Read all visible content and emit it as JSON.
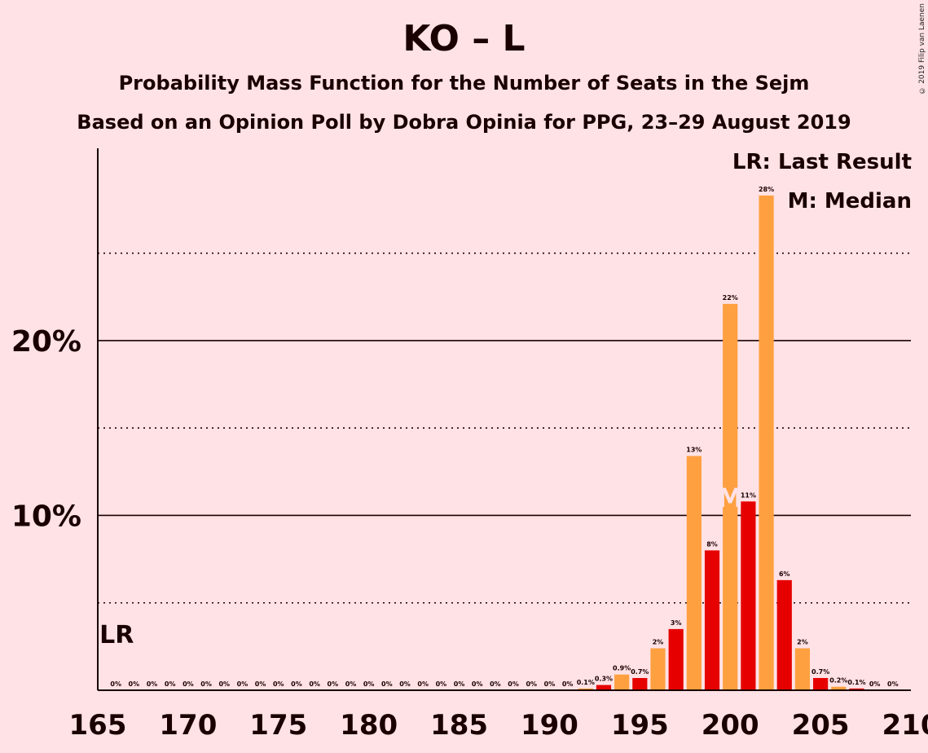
{
  "header": {
    "title": "KO – L",
    "subtitle1": "Probability Mass Function for the Number of Seats in the Sejm",
    "subtitle2": "Based on an Opinion Poll by Dobra Opinia for PPG, 23–29 August 2019",
    "copyright": "© 2019 Filip van Laenen"
  },
  "legend": {
    "last_result": "LR: Last Result",
    "median": "M: Median"
  },
  "colors": {
    "background": "#FFE2E5",
    "bar_orange": "#FFA040",
    "bar_red": "#E60000",
    "text": "#1a0000",
    "median_marker": "#FFE2E5"
  },
  "chart_data": {
    "type": "bar",
    "xlim": [
      165,
      210
    ],
    "ylim": [
      0,
      30
    ],
    "x_ticks": [
      165,
      170,
      175,
      180,
      185,
      190,
      195,
      200,
      205,
      210
    ],
    "x_tick_labels": [
      "165",
      "170",
      "175",
      "180",
      "185",
      "190",
      "195",
      "200",
      "205",
      "210"
    ],
    "y_ticks": [
      10,
      20
    ],
    "y_tick_labels": [
      "10%",
      "20%"
    ],
    "y_dotted_lines": [
      5,
      15,
      25
    ],
    "last_result_seat": 166,
    "last_result_label": "LR",
    "median_seat": 200,
    "median_label": "M",
    "x": [
      166,
      167,
      168,
      169,
      170,
      171,
      172,
      173,
      174,
      175,
      176,
      177,
      178,
      179,
      180,
      181,
      182,
      183,
      184,
      185,
      186,
      187,
      188,
      189,
      190,
      191,
      192,
      193,
      194,
      195,
      196,
      197,
      198,
      199,
      200,
      201,
      202,
      203,
      204,
      205,
      206,
      207,
      208,
      209
    ],
    "values": [
      0,
      0,
      0,
      0,
      0,
      0,
      0,
      0,
      0,
      0,
      0,
      0,
      0,
      0,
      0,
      0,
      0,
      0,
      0,
      0,
      0,
      0,
      0,
      0,
      0,
      0,
      0.1,
      0.3,
      0.9,
      0.7,
      2.4,
      3.5,
      13.4,
      8.0,
      22.1,
      10.8,
      28.3,
      6.3,
      2.4,
      0.7,
      0.2,
      0.1,
      0,
      0
    ],
    "labels": [
      "0%",
      "0%",
      "0%",
      "0%",
      "0%",
      "0%",
      "0%",
      "0%",
      "0%",
      "0%",
      "0%",
      "0%",
      "0%",
      "0%",
      "0%",
      "0%",
      "0%",
      "0%",
      "0%",
      "0%",
      "0%",
      "0%",
      "0%",
      "0%",
      "0%",
      "0%",
      "0.1%",
      "0.3%",
      "0.9%",
      "0.7%",
      "2%",
      "3%",
      "13%",
      "8%",
      "22%",
      "11%",
      "28%",
      "6%",
      "2%",
      "0.7%",
      "0.2%",
      "0.1%",
      "0%",
      "0%"
    ]
  }
}
